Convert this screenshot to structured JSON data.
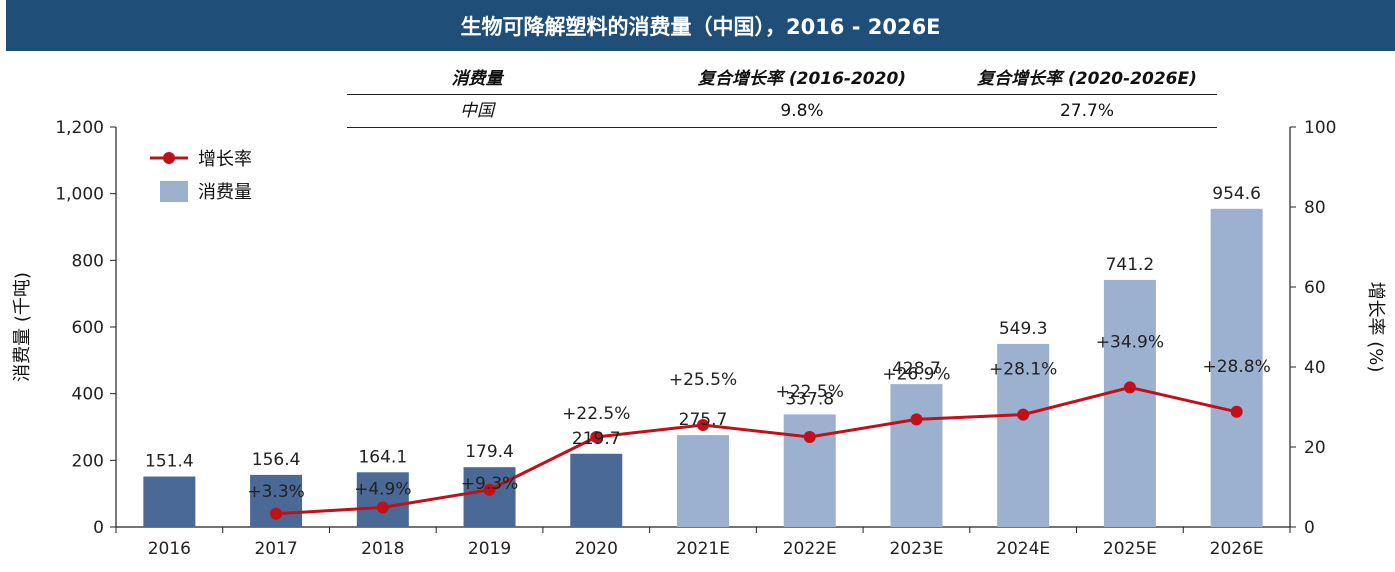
{
  "colors": {
    "title_bg": "#1f4e79",
    "bar_actual": "#4a6997",
    "bar_forecast": "#9cb0d0",
    "growth_line": "#c0101a",
    "axis": "#222222"
  },
  "title": "生物可降解塑料的消费量（中国），2016 - 2026E",
  "cagr_table": {
    "headers": [
      "消费量",
      "复合增长率 (2016-2020)",
      "复合增长率 (2020-2026E)"
    ],
    "row": {
      "region": "中国",
      "cagr_2016_2020": "9.8%",
      "cagr_2020_2026": "27.7%"
    }
  },
  "chart_data": {
    "type": "bar",
    "categories": [
      "2016",
      "2017",
      "2018",
      "2019",
      "2020",
      "2021E",
      "2022E",
      "2023E",
      "2024E",
      "2025E",
      "2026E"
    ],
    "series": [
      {
        "name": "消费量",
        "type": "bar",
        "axis": "left",
        "values": [
          151.4,
          156.4,
          164.1,
          179.4,
          219.7,
          275.7,
          337.8,
          428.7,
          549.3,
          741.2,
          954.6
        ],
        "value_labels": [
          "151.4",
          "156.4",
          "164.1",
          "179.4",
          "219.7",
          "275.7",
          "337.8",
          "428.7",
          "549.3",
          "741.2",
          "954.6"
        ],
        "forecast_from_index": 5
      },
      {
        "name": "增长率",
        "type": "line",
        "axis": "right",
        "values": [
          null,
          3.3,
          4.9,
          9.3,
          22.5,
          25.5,
          22.5,
          26.9,
          28.1,
          34.9,
          28.8
        ],
        "value_labels": [
          "",
          "+3.3%",
          "+4.9%",
          "+9.3%",
          "+22.5%",
          "+25.5%",
          "+22.5%",
          "+26.9%",
          "+28.1%",
          "+34.9%",
          "+28.8%"
        ]
      }
    ],
    "ylabel": "消费量 (千吨)",
    "y2label": "增长率 (%)",
    "ylim": [
      0,
      1200
    ],
    "y_ticks": [
      "0",
      "200",
      "400",
      "600",
      "800",
      "1,000",
      "1,200"
    ],
    "y2lim": [
      0,
      100
    ],
    "y2_ticks": [
      "0",
      "20",
      "40",
      "60",
      "80",
      "100"
    ],
    "legend": {
      "position": "top-left",
      "items": [
        "增长率",
        "消费量"
      ]
    },
    "grid": false
  }
}
